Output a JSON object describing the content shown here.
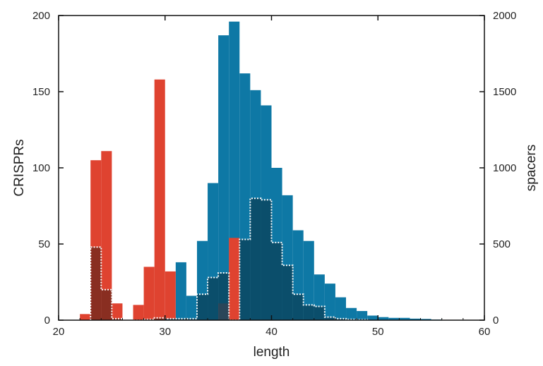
{
  "chart_data": {
    "type": "bar",
    "title": "",
    "xlabel": "length",
    "ylabel_left": "CRISPRs",
    "ylabel_right": "spacers",
    "xlim": [
      20,
      60
    ],
    "ylim_left": [
      0,
      200
    ],
    "ylim_right": [
      0,
      2000
    ],
    "xticks": [
      20,
      30,
      40,
      50,
      60
    ],
    "yticks_left": [
      0,
      50,
      100,
      150,
      200
    ],
    "yticks_right": [
      0,
      500,
      1000,
      1500,
      2000
    ],
    "bin_width": 1,
    "grid": false,
    "colors": {
      "crisprs": "#df4330",
      "spacers": "#0e78a5",
      "overlap": "#0b4660",
      "overlap_red": "#7a2a1e",
      "dotted_outline": "#ffffff",
      "axes": "#111111"
    },
    "series": [
      {
        "key": "crisprs",
        "axis": "left",
        "x": [
          22.5,
          23.5,
          24.5,
          25.5,
          26.5,
          27.5,
          28.5,
          29.5,
          30.5,
          31.5,
          32.5,
          33.5,
          34.5,
          35.5,
          36.5,
          37.5,
          38.5
        ],
        "values": [
          4,
          105,
          111,
          11,
          0,
          10,
          35,
          158,
          32,
          0,
          0,
          0,
          0,
          11,
          54,
          0,
          0
        ]
      },
      {
        "key": "spacers",
        "axis": "right",
        "x": [
          21.5,
          22.5,
          23.5,
          24.5,
          25.5,
          26.5,
          27.5,
          28.5,
          29.5,
          30.5,
          31.5,
          32.5,
          33.5,
          34.5,
          35.5,
          36.5,
          37.5,
          38.5,
          39.5,
          40.5,
          41.5,
          42.5,
          43.5,
          44.5,
          45.5,
          46.5,
          47.5,
          48.5,
          49.5,
          50.5,
          51.5,
          52.5,
          53.5,
          54.5,
          55.5
        ],
        "values": [
          0,
          0,
          0,
          0,
          0,
          0,
          0,
          20,
          20,
          20,
          380,
          160,
          520,
          900,
          1870,
          1960,
          1620,
          1510,
          1410,
          1000,
          820,
          590,
          520,
          300,
          240,
          150,
          80,
          60,
          30,
          20,
          15,
          15,
          10,
          8,
          4
        ]
      },
      {
        "key": "spacers_subset",
        "axis": "right",
        "outline": "dotted",
        "x": [
          23.5,
          24.5,
          25.5,
          26.5,
          27.5,
          28.5,
          29.5,
          30.5,
          31.5,
          32.5,
          33.5,
          34.5,
          35.5,
          36.5,
          37.5,
          38.5,
          39.5,
          40.5,
          41.5,
          42.5,
          43.5,
          44.5,
          45.5,
          46.5,
          47.5,
          48.5
        ],
        "values": [
          480,
          200,
          10,
          0,
          0,
          5,
          15,
          10,
          10,
          10,
          170,
          280,
          310,
          0,
          530,
          800,
          790,
          510,
          360,
          170,
          100,
          90,
          20,
          10,
          5,
          3
        ]
      }
    ]
  }
}
